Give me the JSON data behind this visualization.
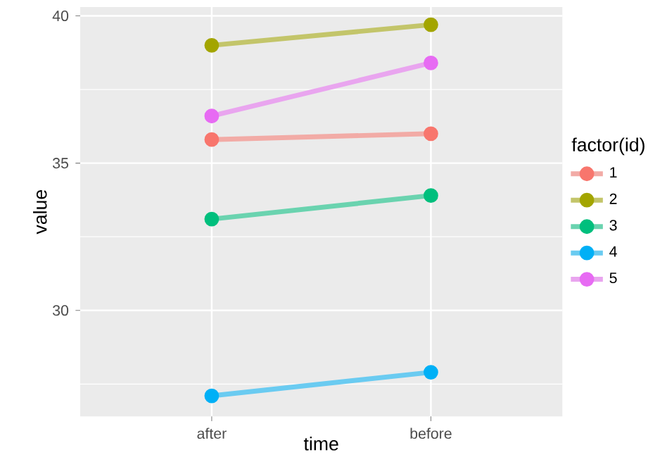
{
  "chart_data": {
    "type": "line",
    "xlabel": "time",
    "ylabel": "value",
    "legend_title": "factor(id)",
    "categories": [
      "after",
      "before"
    ],
    "series": [
      {
        "name": "1",
        "color": "#f8766d",
        "values": [
          35.8,
          36.0
        ]
      },
      {
        "name": "2",
        "color": "#a3a500",
        "values": [
          39.0,
          39.7
        ]
      },
      {
        "name": "3",
        "color": "#00bf7d",
        "values": [
          33.1,
          33.9
        ]
      },
      {
        "name": "4",
        "color": "#00b0f6",
        "values": [
          27.1,
          27.9
        ]
      },
      {
        "name": "5",
        "color": "#e76bf3",
        "values": [
          36.6,
          38.4
        ]
      }
    ],
    "ylim": [
      26.4,
      40.3
    ],
    "yticks": [
      30,
      35,
      40
    ],
    "grid": true,
    "legend": "right",
    "marker": "circle",
    "line_style": "solid"
  }
}
